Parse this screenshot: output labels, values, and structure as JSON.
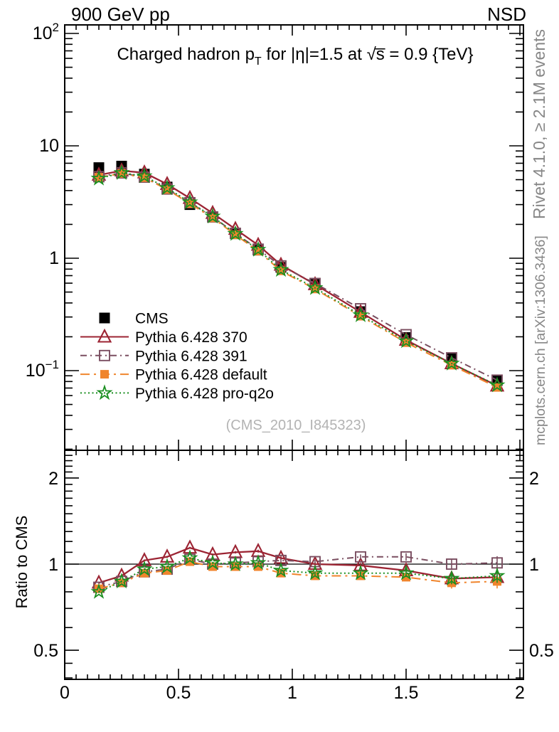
{
  "chart_data": {
    "type": "line",
    "header": {
      "left": "900 GeV pp",
      "right": "NSD"
    },
    "title": {
      "text": "Charged hadron pT for |η|=1.5 at √s = 0.9 {TeV}",
      "parts": {
        "pre": "Charged hadron p",
        "sub": "T",
        "mid": " for |η|=1.5 at ",
        "sqrt": "√s̅",
        "post": " = 0.9 {TeV}"
      }
    },
    "watermark": "(CMS_2010_I845323)",
    "side_notes": {
      "top": "Rivet 4.1.0, ≥ 2.1M events",
      "bottom": "mcplots.cern.ch [arXiv:1306.3436]"
    },
    "axes": {
      "x": {
        "lim": [
          0,
          2.0156
        ],
        "major_ticks": [
          0,
          0.5,
          1,
          1.5,
          2
        ],
        "tick_labels": [
          "0",
          "0.5",
          "1",
          "1.5",
          "2"
        ],
        "minor_step": 0.05
      },
      "y_main": {
        "scale": "log",
        "lim": [
          0.0196,
          119
        ],
        "tick_labels": [
          {
            "v": 100,
            "base": "10",
            "exp": "2"
          },
          {
            "v": 10,
            "base": "10",
            "exp": ""
          },
          {
            "v": 1,
            "base": "1",
            "exp": ""
          },
          {
            "v": 0.1,
            "base": "10",
            "exp": "−1"
          }
        ]
      },
      "y_ratio": {
        "scale": "log",
        "lim": [
          0.395,
          2.505
        ],
        "label": "Ratio to CMS",
        "baseline": 1,
        "tick_labels": [
          {
            "v": 2,
            "t": "2"
          },
          {
            "v": 1,
            "t": "1"
          },
          {
            "v": 0.5,
            "t": "0.5"
          }
        ],
        "minor_ticks": [
          0.4,
          0.45,
          0.6,
          0.7,
          0.8,
          0.9,
          1.1,
          1.2,
          1.3,
          1.4,
          1.5,
          1.6,
          1.7,
          1.8,
          1.9,
          2.1,
          2.2,
          2.3,
          2.4
        ]
      }
    },
    "x": [
      0.15,
      0.25,
      0.35,
      0.45,
      0.55,
      0.65,
      0.75,
      0.85,
      0.95,
      1.1,
      1.3,
      1.5,
      1.7,
      1.9
    ],
    "cms": {
      "name": "CMS",
      "color": "#000000",
      "marker": "filled-square",
      "values": [
        6.4,
        6.6,
        5.6,
        4.3,
        3.0,
        2.33,
        1.65,
        1.18,
        0.83,
        0.585,
        0.335,
        0.197,
        0.13,
        0.0815
      ]
    },
    "series": [
      {
        "name": "Pythia 6.428 370",
        "color": "#9c2433",
        "line": "solid",
        "marker": "open-triangle",
        "ratio": [
          0.86,
          0.91,
          1.03,
          1.06,
          1.14,
          1.08,
          1.1,
          1.11,
          1.05,
          1.0,
          0.99,
          0.95,
          0.89,
          0.9
        ]
      },
      {
        "name": "Pythia 6.428 391",
        "color": "#7a4e60",
        "line": "dashdot",
        "marker": "open-square",
        "ratio": [
          0.83,
          0.87,
          0.94,
          0.96,
          1.04,
          1.0,
          1.01,
          1.02,
          1.03,
          1.02,
          1.06,
          1.06,
          1.0,
          1.01
        ]
      },
      {
        "name": "Pythia 6.428 default",
        "color": "#f0852d",
        "line": "longdashdot",
        "marker": "filled-square",
        "ratio": [
          0.82,
          0.86,
          0.93,
          0.95,
          1.02,
          0.98,
          0.98,
          0.98,
          0.93,
          0.91,
          0.91,
          0.9,
          0.86,
          0.87
        ]
      },
      {
        "name": "Pythia 6.428 pro-q2o",
        "color": "#1b8f21",
        "line": "dotted",
        "marker": "open-star",
        "ratio": [
          0.8,
          0.87,
          0.96,
          0.98,
          1.05,
          1.01,
          1.0,
          1.01,
          0.95,
          0.93,
          0.93,
          0.93,
          0.89,
          0.91
        ]
      }
    ],
    "ratio_err": [
      0.008,
      0.008,
      0.008,
      0.008,
      0.008,
      0.009,
      0.01,
      0.012,
      0.015,
      0.015,
      0.02,
      0.03,
      0.045,
      0.055
    ]
  }
}
